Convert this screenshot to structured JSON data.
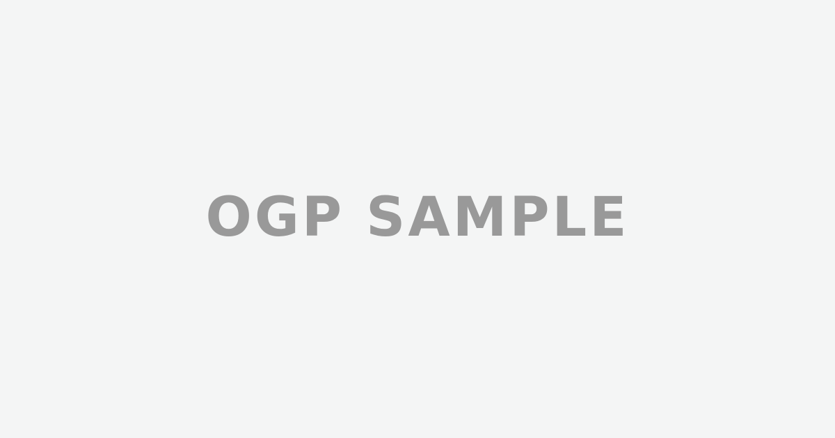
{
  "colors": {
    "background": "#f4f5f5",
    "text": "#999999"
  },
  "title": "OGP SAMPLE"
}
